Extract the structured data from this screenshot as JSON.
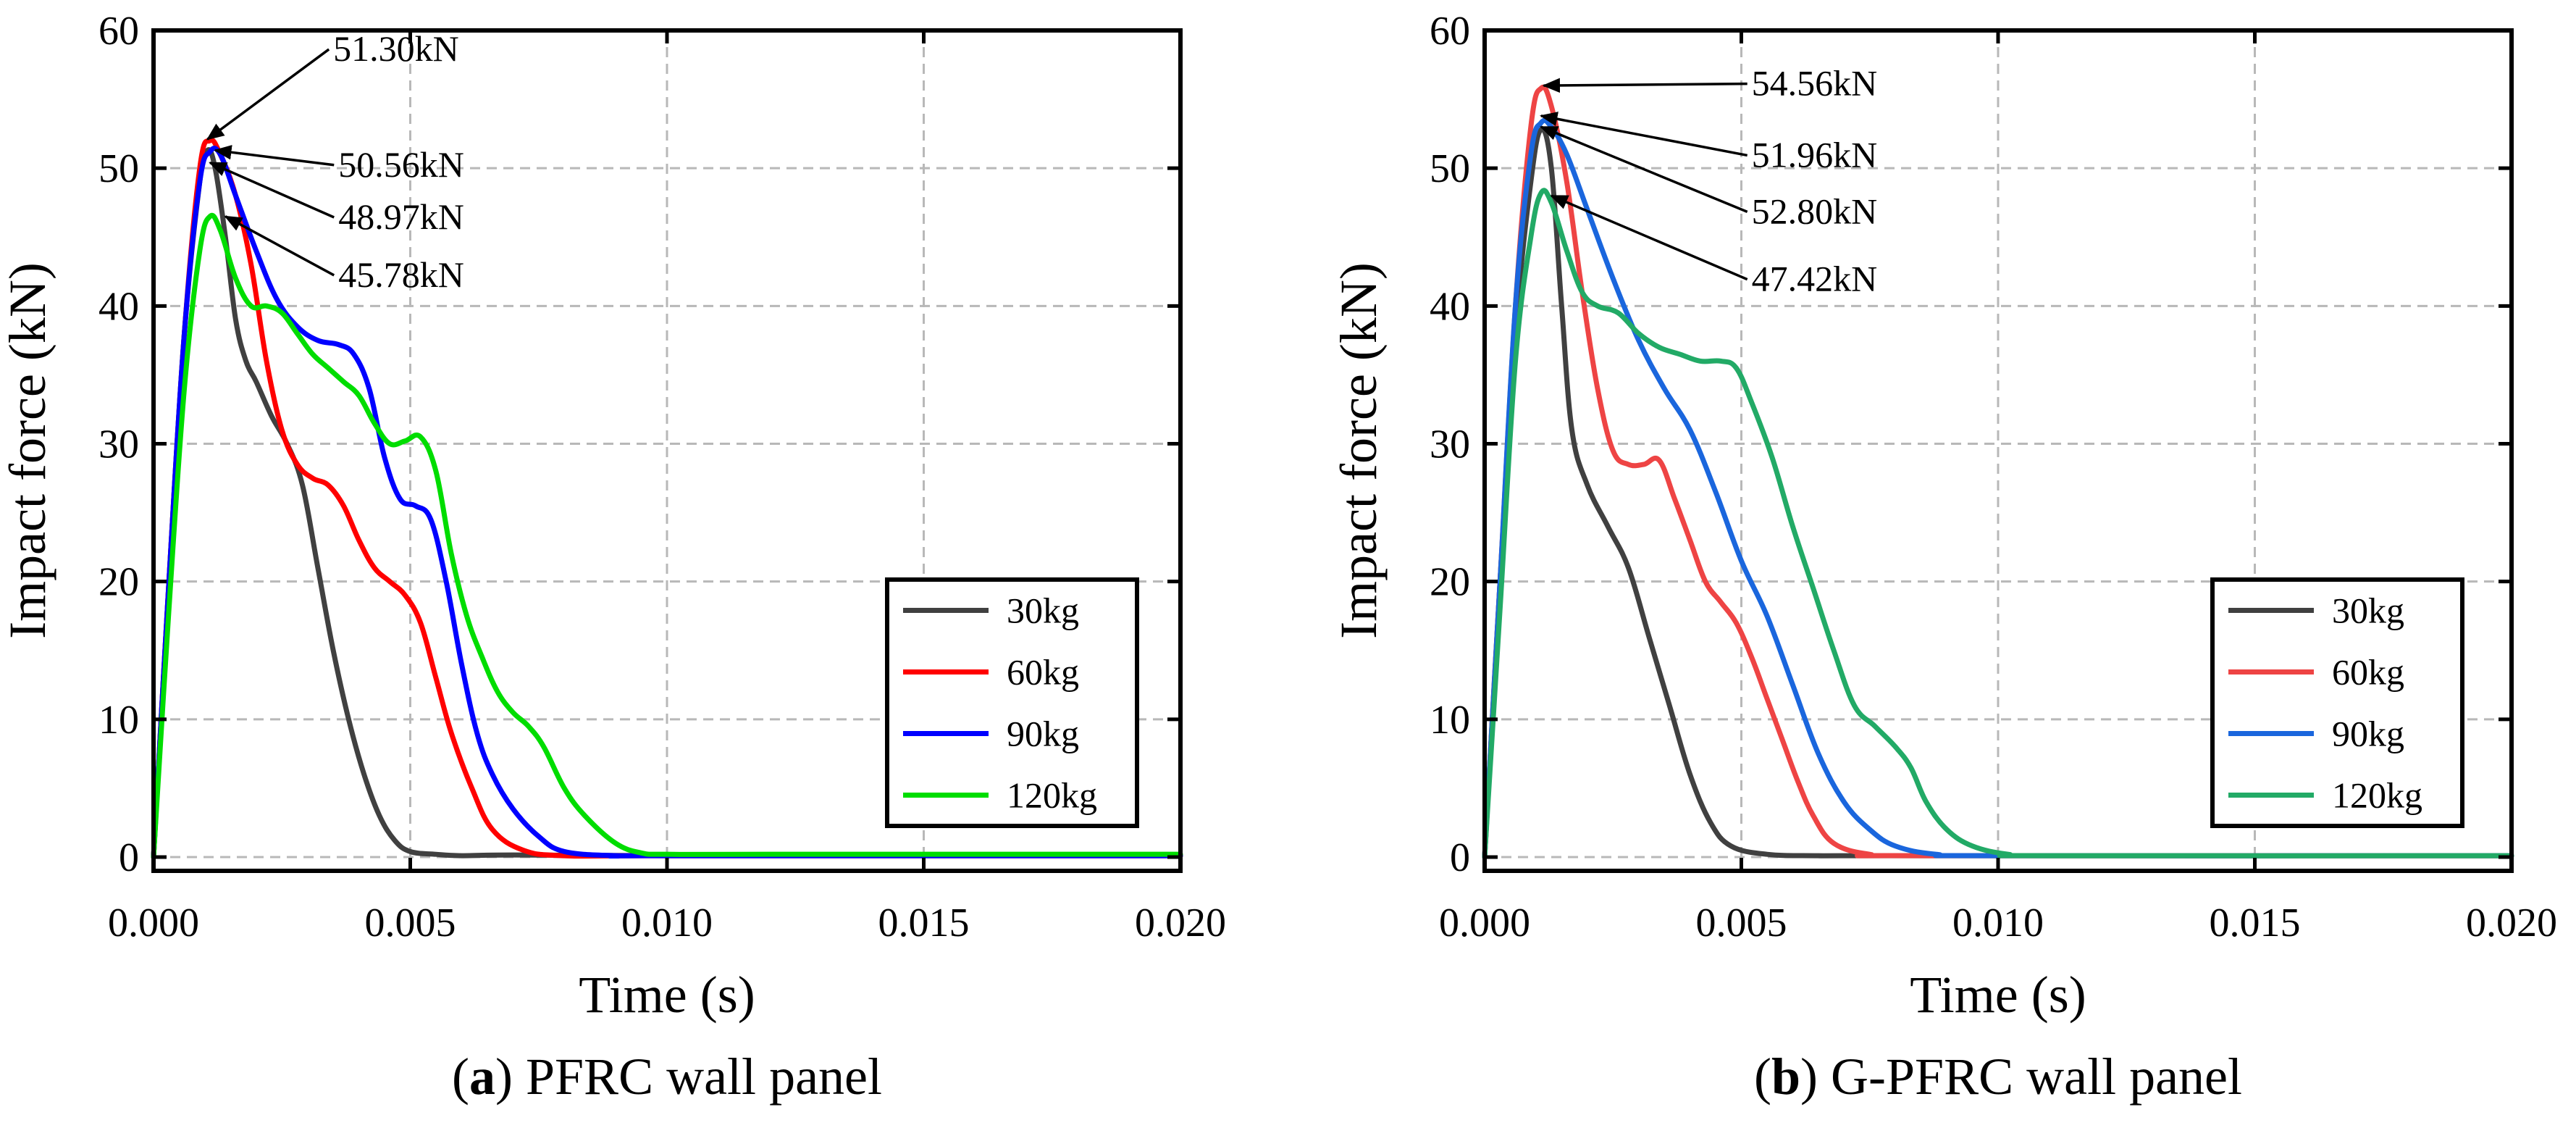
{
  "chart_data": [
    {
      "type": "line",
      "caption_letter": "a",
      "caption_text": " PFRC wall panel",
      "xlabel": "Time (s)",
      "ylabel": "Impact force (kN)",
      "xlim": [
        0,
        0.02
      ],
      "ylim": [
        -1,
        60
      ],
      "x_ticks": [
        "0.000",
        "0.005",
        "0.010",
        "0.015",
        "0.020"
      ],
      "y_ticks": [
        "0",
        "10",
        "20",
        "30",
        "40",
        "50",
        "60"
      ],
      "x_tick_values": [
        0,
        0.005,
        0.01,
        0.015,
        0.02
      ],
      "y_tick_values": [
        0,
        10,
        20,
        30,
        40,
        50,
        60
      ],
      "grid": true,
      "legend_position": "bottom-right",
      "series": [
        {
          "name": "30kg",
          "color": "#404040",
          "points": [
            [
              0,
              0
            ],
            [
              0.0003,
              20
            ],
            [
              0.0006,
              38
            ],
            [
              0.0009,
              49
            ],
            [
              0.00105,
              51.3
            ],
            [
              0.0012,
              50
            ],
            [
              0.0014,
              45
            ],
            [
              0.0016,
              39
            ],
            [
              0.0018,
              36
            ],
            [
              0.002,
              34.5
            ],
            [
              0.0023,
              32
            ],
            [
              0.0026,
              30
            ],
            [
              0.0029,
              27
            ],
            [
              0.0032,
              21
            ],
            [
              0.0035,
              15
            ],
            [
              0.0038,
              10
            ],
            [
              0.0041,
              6
            ],
            [
              0.0044,
              3
            ],
            [
              0.0047,
              1.2
            ],
            [
              0.005,
              0.4
            ],
            [
              0.0055,
              0.2
            ],
            [
              0.006,
              0.1
            ],
            [
              0.007,
              0.15
            ],
            [
              0.01,
              0.1
            ],
            [
              0.015,
              0.1
            ],
            [
              0.02,
              0.1
            ]
          ]
        },
        {
          "name": "60kg",
          "color": "#ff0000",
          "points": [
            [
              0,
              0
            ],
            [
              0.0003,
              20
            ],
            [
              0.0006,
              38
            ],
            [
              0.0009,
              50
            ],
            [
              0.0011,
              52
            ],
            [
              0.0013,
              51
            ],
            [
              0.0016,
              48
            ],
            [
              0.0019,
              43
            ],
            [
              0.0022,
              36
            ],
            [
              0.0025,
              31
            ],
            [
              0.0028,
              28.5
            ],
            [
              0.0031,
              27.5
            ],
            [
              0.0034,
              27
            ],
            [
              0.0037,
              25.5
            ],
            [
              0.004,
              23
            ],
            [
              0.0043,
              21
            ],
            [
              0.0046,
              20
            ],
            [
              0.0049,
              19
            ],
            [
              0.0052,
              17
            ],
            [
              0.0055,
              13
            ],
            [
              0.0058,
              9
            ],
            [
              0.0062,
              5
            ],
            [
              0.0066,
              2
            ],
            [
              0.0072,
              0.5
            ],
            [
              0.008,
              0.1
            ],
            [
              0.01,
              0.1
            ],
            [
              0.02,
              0.1
            ]
          ]
        },
        {
          "name": "90kg",
          "color": "#0000ff",
          "points": [
            [
              0,
              0
            ],
            [
              0.0003,
              20
            ],
            [
              0.0006,
              38
            ],
            [
              0.0009,
              49
            ],
            [
              0.0011,
              51.2
            ],
            [
              0.0013,
              51
            ],
            [
              0.0016,
              48
            ],
            [
              0.002,
              44
            ],
            [
              0.0024,
              40.5
            ],
            [
              0.0028,
              38.5
            ],
            [
              0.0032,
              37.5
            ],
            [
              0.0036,
              37.2
            ],
            [
              0.0039,
              36.5
            ],
            [
              0.0042,
              34
            ],
            [
              0.0045,
              29
            ],
            [
              0.0048,
              26
            ],
            [
              0.0051,
              25.5
            ],
            [
              0.0054,
              24.5
            ],
            [
              0.0057,
              20
            ],
            [
              0.006,
              14
            ],
            [
              0.0063,
              9
            ],
            [
              0.0066,
              6
            ],
            [
              0.007,
              3.5
            ],
            [
              0.0075,
              1.5
            ],
            [
              0.008,
              0.4
            ],
            [
              0.009,
              0.1
            ],
            [
              0.01,
              0.1
            ],
            [
              0.02,
              0.1
            ]
          ]
        },
        {
          "name": "120kg",
          "color": "#00dd00",
          "points": [
            [
              0,
              0
            ],
            [
              0.0003,
              18
            ],
            [
              0.0006,
              34
            ],
            [
              0.0009,
              44
            ],
            [
              0.0011,
              46.5
            ],
            [
              0.0013,
              45.5
            ],
            [
              0.0016,
              42
            ],
            [
              0.0019,
              40
            ],
            [
              0.0022,
              40
            ],
            [
              0.0025,
              39.5
            ],
            [
              0.0028,
              38
            ],
            [
              0.0031,
              36.5
            ],
            [
              0.0034,
              35.5
            ],
            [
              0.0037,
              34.5
            ],
            [
              0.004,
              33.5
            ],
            [
              0.0043,
              31.5
            ],
            [
              0.0046,
              30
            ],
            [
              0.0049,
              30.2
            ],
            [
              0.0052,
              30.5
            ],
            [
              0.0055,
              28
            ],
            [
              0.0058,
              22
            ],
            [
              0.0061,
              17.5
            ],
            [
              0.0064,
              14.5
            ],
            [
              0.0067,
              12
            ],
            [
              0.007,
              10.5
            ],
            [
              0.0073,
              9.5
            ],
            [
              0.0076,
              8
            ],
            [
              0.008,
              5
            ],
            [
              0.0084,
              3
            ],
            [
              0.009,
              1
            ],
            [
              0.0095,
              0.3
            ],
            [
              0.01,
              0.2
            ],
            [
              0.012,
              0.2
            ],
            [
              0.02,
              0.2
            ]
          ]
        }
      ],
      "annotations": [
        {
          "text": "51.30kN",
          "at": [
            0.00105,
            52.1
          ],
          "label_at": [
            0.0035,
            58
          ]
        },
        {
          "text": "50.56kN",
          "at": [
            0.0012,
            51.3
          ],
          "label_at": [
            0.0036,
            49.6
          ]
        },
        {
          "text": "48.97kN",
          "at": [
            0.0011,
            50.4
          ],
          "label_at": [
            0.0036,
            45.8
          ]
        },
        {
          "text": "45.78kN",
          "at": [
            0.0014,
            46.5
          ],
          "label_at": [
            0.0036,
            41.6
          ]
        }
      ]
    },
    {
      "type": "line",
      "caption_letter": "b",
      "caption_text": " G-PFRC wall panel",
      "xlabel": "Time (s)",
      "ylabel": "Impact force (kN)",
      "xlim": [
        0,
        0.02
      ],
      "ylim": [
        -1,
        60
      ],
      "x_ticks": [
        "0.000",
        "0.005",
        "0.010",
        "0.015",
        "0.020"
      ],
      "y_ticks": [
        "0",
        "10",
        "20",
        "30",
        "40",
        "50",
        "60"
      ],
      "x_tick_values": [
        0,
        0.005,
        0.01,
        0.015,
        0.02
      ],
      "y_tick_values": [
        0,
        10,
        20,
        30,
        40,
        50,
        60
      ],
      "grid": true,
      "legend_position": "bottom-right",
      "series": [
        {
          "name": "30kg",
          "color": "#404040",
          "points": [
            [
              0,
              0
            ],
            [
              0.0003,
              20
            ],
            [
              0.0006,
              38
            ],
            [
              0.0009,
              49
            ],
            [
              0.0011,
              52.8
            ],
            [
              0.0013,
              50
            ],
            [
              0.0015,
              40
            ],
            [
              0.0017,
              31
            ],
            [
              0.002,
              27
            ],
            [
              0.0024,
              24
            ],
            [
              0.0028,
              21
            ],
            [
              0.0032,
              16
            ],
            [
              0.0036,
              11
            ],
            [
              0.004,
              6
            ],
            [
              0.0044,
              2.5
            ],
            [
              0.0048,
              0.8
            ],
            [
              0.0055,
              0.2
            ],
            [
              0.0065,
              0.1
            ],
            [
              0.008,
              0.1
            ],
            [
              0.02,
              0.1
            ]
          ]
        },
        {
          "name": "60kg",
          "color": "#ee4444",
          "points": [
            [
              0,
              0
            ],
            [
              0.0003,
              20
            ],
            [
              0.0006,
              40
            ],
            [
              0.0009,
              53
            ],
            [
              0.0011,
              55.8
            ],
            [
              0.0013,
              54.5
            ],
            [
              0.0016,
              49
            ],
            [
              0.0019,
              41
            ],
            [
              0.0022,
              34
            ],
            [
              0.0025,
              29.5
            ],
            [
              0.0028,
              28.5
            ],
            [
              0.0031,
              28.5
            ],
            [
              0.0034,
              28.8
            ],
            [
              0.0037,
              26
            ],
            [
              0.004,
              23
            ],
            [
              0.0043,
              20
            ],
            [
              0.0046,
              18.5
            ],
            [
              0.0049,
              17
            ],
            [
              0.0052,
              14.5
            ],
            [
              0.0055,
              11.5
            ],
            [
              0.0058,
              8.5
            ],
            [
              0.0061,
              5.5
            ],
            [
              0.0064,
              3
            ],
            [
              0.0068,
              1
            ],
            [
              0.0075,
              0.2
            ],
            [
              0.0085,
              0.1
            ],
            [
              0.02,
              0.1
            ]
          ]
        },
        {
          "name": "90kg",
          "color": "#1a66dd",
          "points": [
            [
              0,
              0
            ],
            [
              0.0003,
              20
            ],
            [
              0.0006,
              40
            ],
            [
              0.0009,
              51
            ],
            [
              0.0011,
              53.3
            ],
            [
              0.0013,
              53
            ],
            [
              0.0016,
              51
            ],
            [
              0.002,
              47
            ],
            [
              0.0025,
              42
            ],
            [
              0.003,
              37.5
            ],
            [
              0.0035,
              34
            ],
            [
              0.004,
              31
            ],
            [
              0.0045,
              26.5
            ],
            [
              0.005,
              21.5
            ],
            [
              0.0055,
              17.5
            ],
            [
              0.006,
              12.5
            ],
            [
              0.0065,
              7.5
            ],
            [
              0.007,
              4
            ],
            [
              0.0075,
              2
            ],
            [
              0.008,
              0.8
            ],
            [
              0.0088,
              0.2
            ],
            [
              0.01,
              0.1
            ],
            [
              0.02,
              0.1
            ]
          ]
        },
        {
          "name": "120kg",
          "color": "#22aa66",
          "points": [
            [
              0,
              0
            ],
            [
              0.0003,
              18
            ],
            [
              0.0006,
              36
            ],
            [
              0.0009,
              45
            ],
            [
              0.0011,
              48.2
            ],
            [
              0.0013,
              47.5
            ],
            [
              0.0016,
              44
            ],
            [
              0.0019,
              41
            ],
            [
              0.0022,
              40
            ],
            [
              0.0026,
              39.5
            ],
            [
              0.003,
              38
            ],
            [
              0.0034,
              37
            ],
            [
              0.0038,
              36.5
            ],
            [
              0.0042,
              36
            ],
            [
              0.0046,
              36
            ],
            [
              0.0049,
              35.5
            ],
            [
              0.0052,
              33
            ],
            [
              0.0056,
              29
            ],
            [
              0.006,
              24
            ],
            [
              0.0064,
              19.5
            ],
            [
              0.0068,
              15
            ],
            [
              0.0072,
              11
            ],
            [
              0.0076,
              9.5
            ],
            [
              0.008,
              8
            ],
            [
              0.0083,
              6.5
            ],
            [
              0.0086,
              4
            ],
            [
              0.009,
              2
            ],
            [
              0.0095,
              0.8
            ],
            [
              0.0102,
              0.2
            ],
            [
              0.011,
              0.1
            ],
            [
              0.02,
              0.1
            ]
          ]
        }
      ],
      "annotations": [
        {
          "text": "54.56kN",
          "at": [
            0.00115,
            56
          ],
          "label_at": [
            0.0052,
            55.5
          ]
        },
        {
          "text": "51.96kN",
          "at": [
            0.0011,
            53.8
          ],
          "label_at": [
            0.0052,
            50.3
          ]
        },
        {
          "text": "52.80kN",
          "at": [
            0.0011,
            53.0
          ],
          "label_at": [
            0.0052,
            46.2
          ]
        },
        {
          "text": "47.42kN",
          "at": [
            0.0013,
            48.0
          ],
          "label_at": [
            0.0052,
            41.3
          ]
        }
      ]
    }
  ]
}
